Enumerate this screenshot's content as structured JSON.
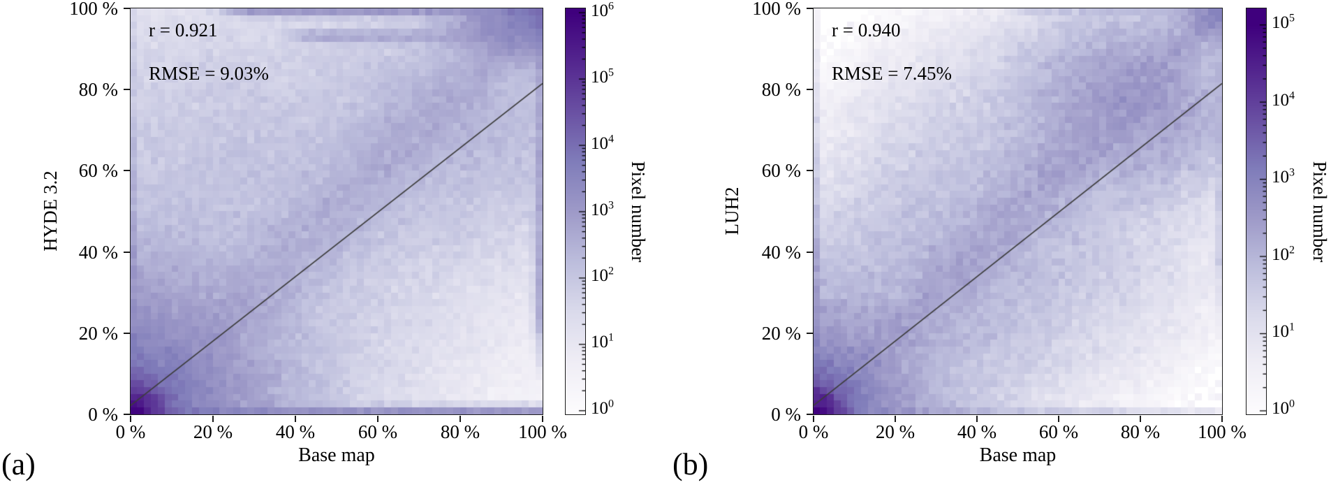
{
  "figure": {
    "panels": [
      {
        "panel_label": "(a)",
        "xlabel": "Base map",
        "ylabel": "HYDE 3.2",
        "annotations": {
          "r": "r = 0.921",
          "rmse": "RMSE = 9.03%"
        },
        "colorbar_label": "Pixel number"
      },
      {
        "panel_label": "(b)",
        "xlabel": "Base map",
        "ylabel": "LUH2",
        "annotations": {
          "r": "r = 0.940",
          "rmse": "RMSE = 7.45%"
        },
        "colorbar_label": "Pixel number"
      }
    ]
  },
  "chart_data": [
    {
      "type": "heatmap",
      "subtype": "2d-density-histogram",
      "title": "",
      "xlabel": "Base map",
      "ylabel": "HYDE 3.2",
      "x_range_percent": [
        0,
        100
      ],
      "y_range_percent": [
        0,
        100
      ],
      "x_tick_labels": [
        "0 %",
        "20 %",
        "40 %",
        "60 %",
        "80 %",
        "100 %"
      ],
      "y_tick_labels": [
        "0 %",
        "20 %",
        "40 %",
        "60 %",
        "80 %",
        "100 %"
      ],
      "stats": {
        "r": 0.921,
        "rmse_percent": 9.03
      },
      "fit_line": {
        "x0_percent": 0,
        "y0_percent": 2.2,
        "x1_percent": 100,
        "y1_percent": 81.5,
        "color": "#3d3d3d"
      },
      "colorbar": {
        "label": "Pixel number",
        "scale": "log10",
        "tick_exponents": [
          0,
          1,
          2,
          3,
          4,
          5,
          6
        ],
        "vmax": 1000000,
        "log_display_range": [
          -0.06,
          6.06
        ]
      },
      "bins": 60,
      "noise_seed": 7,
      "noise_sigma": 0.55,
      "speckle_probability": 0.3,
      "density_components": [
        {
          "kind": "radial",
          "cx": 0,
          "cy": 0,
          "amp": 2000000,
          "scale": 0.018
        },
        {
          "kind": "radial",
          "cx": 0,
          "cy": 0,
          "amp": 20000,
          "scale": 0.09
        },
        {
          "kind": "diag",
          "amp": 250,
          "width0": 0.05,
          "width1": 0.12
        },
        {
          "kind": "gauss",
          "cx": 0.32,
          "cy": 0.52,
          "sx": 0.38,
          "sy": 0.36,
          "amp": 90
        },
        {
          "kind": "gauss",
          "cx": 0.2,
          "cy": 0.75,
          "sx": 0.3,
          "sy": 0.25,
          "amp": 25
        },
        {
          "kind": "gauss",
          "cx": 0.8,
          "cy": 0.72,
          "sx": 0.25,
          "sy": 0.22,
          "amp": 200
        },
        {
          "kind": "gauss",
          "cx": 0.65,
          "cy": 0.3,
          "sx": 0.35,
          "sy": 0.25,
          "amp": 8
        },
        {
          "kind": "hstripe",
          "y": 0,
          "amp": 4000,
          "width": 0.012,
          "xdecay": 0.8
        },
        {
          "kind": "hstripe",
          "y": 1,
          "amp": 1500,
          "width": 0.013,
          "xmin": 0.3
        },
        {
          "kind": "hstripe",
          "y": 0.93,
          "amp": 500,
          "width": 0.012,
          "xmin": 0.45
        },
        {
          "kind": "vstripe",
          "x": 0,
          "amp": 5000,
          "width": 0.012,
          "ydecay": 5
        },
        {
          "kind": "vstripe",
          "x": 1,
          "amp": 600,
          "width": 0.014,
          "ymin": 0.3
        },
        {
          "kind": "gauss",
          "cx": 1,
          "cy": 1,
          "sx": 0.1,
          "sy": 0.08,
          "amp": 6000
        },
        {
          "kind": "gauss",
          "cx": 0.93,
          "cy": 0.95,
          "sx": 0.12,
          "sy": 0.045,
          "amp": 1200
        }
      ]
    },
    {
      "type": "heatmap",
      "subtype": "2d-density-histogram",
      "title": "",
      "xlabel": "Base map",
      "ylabel": "LUH2",
      "x_range_percent": [
        0,
        100
      ],
      "y_range_percent": [
        0,
        100
      ],
      "x_tick_labels": [
        "0 %",
        "20 %",
        "40 %",
        "60 %",
        "80 %",
        "100 %"
      ],
      "y_tick_labels": [
        "0 %",
        "20 %",
        "40 %",
        "60 %",
        "80 %",
        "100 %"
      ],
      "stats": {
        "r": 0.94,
        "rmse_percent": 7.45
      },
      "fit_line": {
        "x0_percent": 0,
        "y0_percent": 2.2,
        "x1_percent": 100,
        "y1_percent": 81.5,
        "color": "#3d3d3d"
      },
      "colorbar": {
        "label": "Pixel number",
        "scale": "log10",
        "tick_exponents": [
          0,
          1,
          2,
          3,
          4,
          5
        ],
        "vmax": 100000,
        "log_display_range": [
          -0.05,
          5.21
        ]
      },
      "bins": 60,
      "noise_seed": 13,
      "noise_sigma": 0.55,
      "speckle_probability": 0.25,
      "density_components": [
        {
          "kind": "radial",
          "cx": 0,
          "cy": 0,
          "amp": 400000,
          "scale": 0.015
        },
        {
          "kind": "radial",
          "cx": 0,
          "cy": 0,
          "amp": 6000,
          "scale": 0.07
        },
        {
          "kind": "diag",
          "amp": 120,
          "width0": 0.04,
          "width1": 0.1
        },
        {
          "kind": "gauss",
          "cx": 0.5,
          "cy": 0.52,
          "sx": 0.3,
          "sy": 0.3,
          "amp": 50
        },
        {
          "kind": "gauss",
          "cx": 0.78,
          "cy": 0.77,
          "sx": 0.2,
          "sy": 0.16,
          "amp": 250
        },
        {
          "kind": "gauss",
          "cx": 0.3,
          "cy": 0.3,
          "sx": 0.25,
          "sy": 0.25,
          "amp": 60
        },
        {
          "kind": "gauss",
          "cx": 0.7,
          "cy": 0.35,
          "sx": 0.3,
          "sy": 0.2,
          "amp": 6
        },
        {
          "kind": "hstripe",
          "y": 0,
          "amp": 500,
          "width": 0.012,
          "xdecay": 4
        },
        {
          "kind": "hstripe",
          "y": 1,
          "amp": 40,
          "width": 0.012,
          "xmin": 0.55
        },
        {
          "kind": "vstripe",
          "x": 0,
          "amp": 3000,
          "width": 0.012,
          "ydecay": 7
        },
        {
          "kind": "vstripe",
          "x": 1,
          "amp": 30,
          "width": 0.014,
          "ymin": 0.4
        },
        {
          "kind": "gauss",
          "cx": 1,
          "cy": 1,
          "sx": 0.07,
          "sy": 0.06,
          "amp": 800
        }
      ]
    }
  ],
  "style": {
    "colormap": "Purples",
    "colormap_stops": [
      [
        0,
        "#fcfbfd"
      ],
      [
        0.125,
        "#efedf5"
      ],
      [
        0.25,
        "#dadaeb"
      ],
      [
        0.375,
        "#bcbddc"
      ],
      [
        0.5,
        "#9e9ac8"
      ],
      [
        0.625,
        "#807dba"
      ],
      [
        0.75,
        "#6a51a3"
      ],
      [
        0.875,
        "#54278f"
      ],
      [
        1,
        "#3f007d"
      ]
    ],
    "axis_color": "#1a1a1a",
    "text_color": "#000000",
    "background": "#ffffff"
  }
}
